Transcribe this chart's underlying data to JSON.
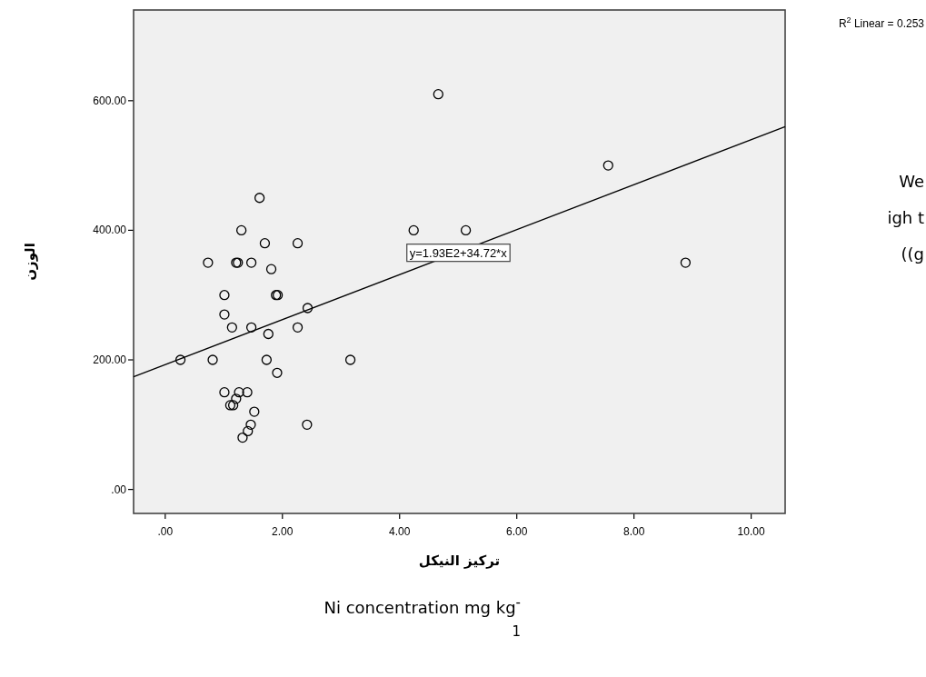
{
  "chart_data": {
    "type": "scatter",
    "xlabel": "تركيز النيكل",
    "ylabel": "الوزن",
    "xlim": [
      -0.54,
      10.58
    ],
    "ylim": [
      -37,
      740
    ],
    "xticks": [
      {
        "value": 0,
        "label": ".00"
      },
      {
        "value": 2,
        "label": "2.00"
      },
      {
        "value": 4,
        "label": "4.00"
      },
      {
        "value": 6,
        "label": "6.00"
      },
      {
        "value": 8,
        "label": "8.00"
      },
      {
        "value": 10,
        "label": "10.00"
      }
    ],
    "yticks": [
      {
        "value": 0,
        "label": ".00"
      },
      {
        "value": 200,
        "label": "200.00"
      },
      {
        "value": 400,
        "label": "400.00"
      },
      {
        "value": 600,
        "label": "600.00"
      }
    ],
    "grid": false,
    "series": [
      {
        "color": "#000000",
        "marker": "circle",
        "x": [
          0.26,
          0.81,
          0.73,
          1.01,
          1.01,
          1.14,
          1.3,
          1.21,
          1.24,
          1.47,
          1.61,
          1.7,
          1.81,
          2.26,
          1.47,
          1.76,
          1.73,
          1.89,
          1.92,
          2.26,
          2.43,
          1.91,
          3.16,
          2.42,
          1.01,
          1.26,
          1.4,
          1.11,
          1.16,
          1.21,
          1.52,
          1.46,
          1.41,
          1.32,
          4.24,
          5.13,
          4.66,
          7.56,
          8.88
        ],
        "values": [
          200,
          200,
          350,
          300,
          270,
          250,
          400,
          350,
          350,
          350,
          450,
          380,
          340,
          380,
          250,
          240,
          200,
          300,
          300,
          250,
          280,
          180,
          200,
          100,
          150,
          150,
          150,
          130,
          130,
          140,
          120,
          100,
          90,
          80,
          400,
          400,
          610,
          500,
          350
        ]
      },
      {
        "type": "line",
        "color": "#000000",
        "line_style": "solid",
        "x": [
          -0.54,
          10.58
        ],
        "values": [
          174,
          560
        ]
      }
    ],
    "annotations": [
      {
        "text": "y=1.93E2+34.72*x",
        "x": 5.0,
        "y": 366
      },
      "R$^{2}$ Linear = 0.253",
      "We igh t ((g",
      "Ni concentration mg kg$^{-1}$"
    ]
  }
}
